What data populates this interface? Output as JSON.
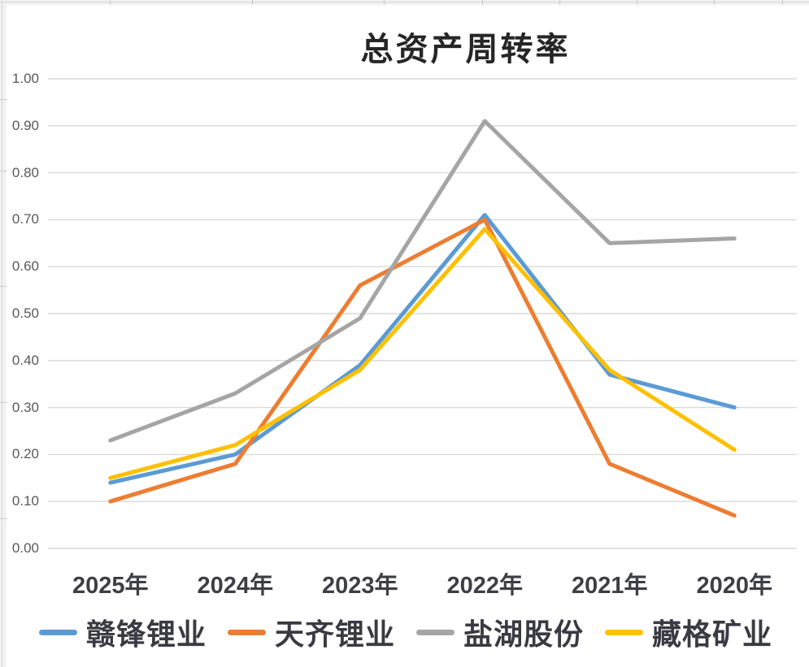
{
  "chart_data": {
    "type": "line",
    "title": "总资产周转率",
    "categories": [
      "2025年",
      "2024年",
      "2023年",
      "2022年",
      "2021年",
      "2020年"
    ],
    "series": [
      {
        "name": "赣锋锂业",
        "color": "#5B9BD5",
        "values": [
          0.14,
          0.2,
          0.39,
          0.71,
          0.37,
          0.3
        ]
      },
      {
        "name": "天齐锂业",
        "color": "#ED7D31",
        "values": [
          0.1,
          0.18,
          0.56,
          0.7,
          0.18,
          0.07
        ]
      },
      {
        "name": "盐湖股份",
        "color": "#A5A5A5",
        "values": [
          0.23,
          0.33,
          0.49,
          0.91,
          0.65,
          0.66
        ]
      },
      {
        "name": "藏格矿业",
        "color": "#FFC000",
        "values": [
          0.15,
          0.22,
          0.38,
          0.68,
          0.38,
          0.21
        ]
      }
    ],
    "ylim": [
      0.0,
      1.0
    ],
    "yticks": [
      0.0,
      0.1,
      0.2,
      0.3,
      0.4,
      0.5,
      0.6,
      0.7,
      0.8,
      0.9,
      1.0
    ],
    "ytick_labels": [
      "0.00",
      "0.10",
      "0.20",
      "0.30",
      "0.40",
      "0.50",
      "0.60",
      "0.70",
      "0.80",
      "0.90",
      "1.00"
    ],
    "xlabel": "",
    "ylabel": "",
    "grid": true,
    "gridline_color": "#dadada",
    "line_width": 5,
    "legend_position": "bottom",
    "title_color": "#262626",
    "ytick_label_color": "#595959",
    "category_label_color": "#3e3e46",
    "legend_label_color": "#3a3a42"
  }
}
